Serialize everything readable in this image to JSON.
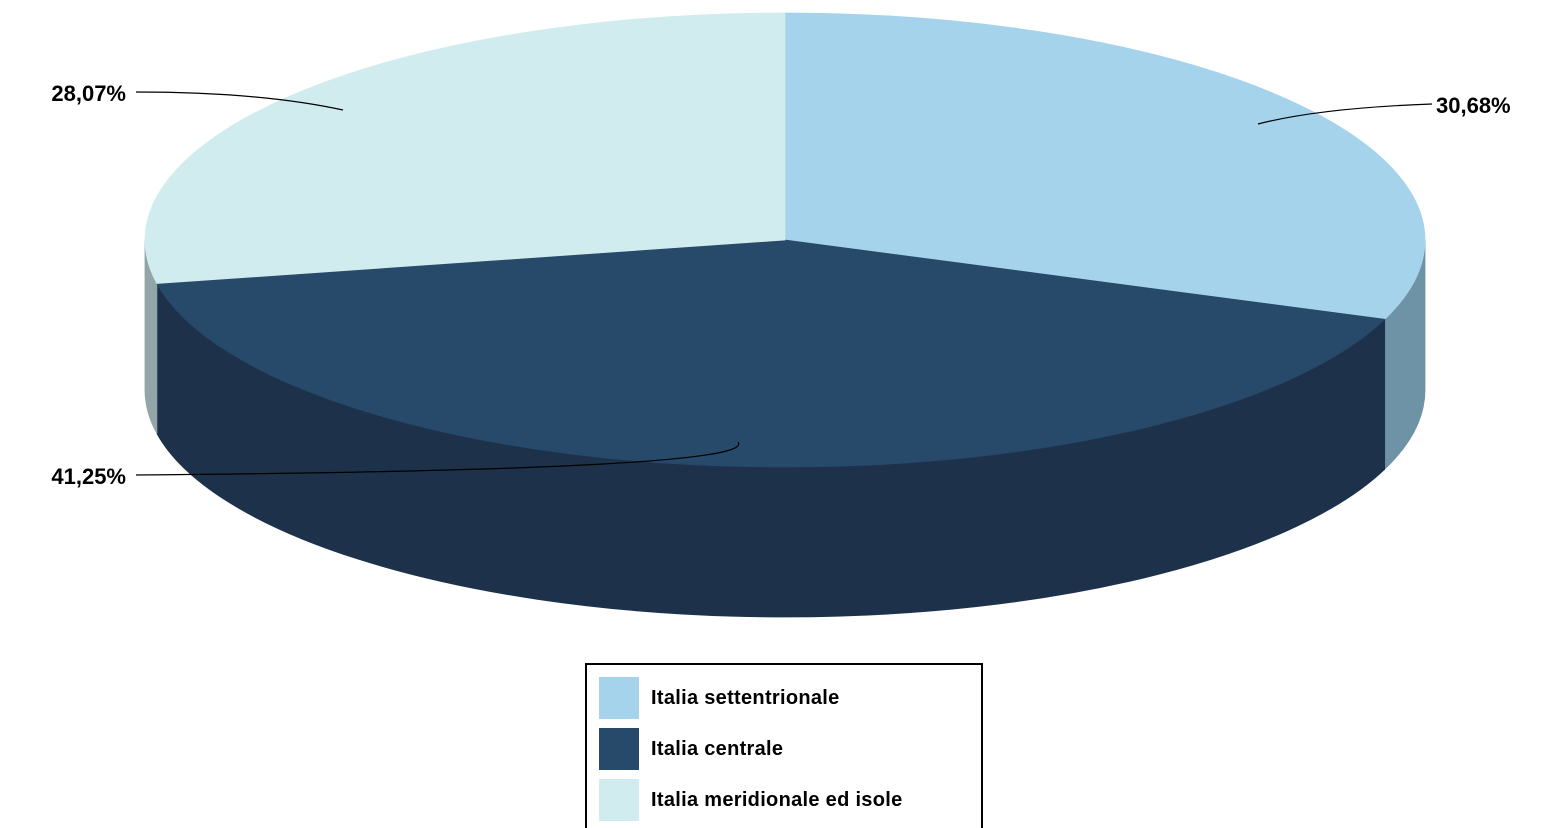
{
  "chart_data": {
    "type": "pie",
    "style": "3d",
    "categories": [
      "Italia settentrionale",
      "Italia centrale",
      "Italia meridionale ed isole"
    ],
    "values": [
      30.68,
      41.25,
      28.07
    ],
    "value_labels": [
      "30,68%",
      "41,25%",
      "28,07%"
    ],
    "colors": [
      "#A5D3EC",
      "#27496A",
      "#D0ECEE"
    ],
    "side_colors": [
      "#6E93A6",
      "#1D324A",
      "#92A5A7"
    ],
    "legend": {
      "position": "bottom",
      "entries": [
        "Italia settentrionale",
        "Italia centrale",
        "Italia meridionale ed isole"
      ]
    }
  }
}
